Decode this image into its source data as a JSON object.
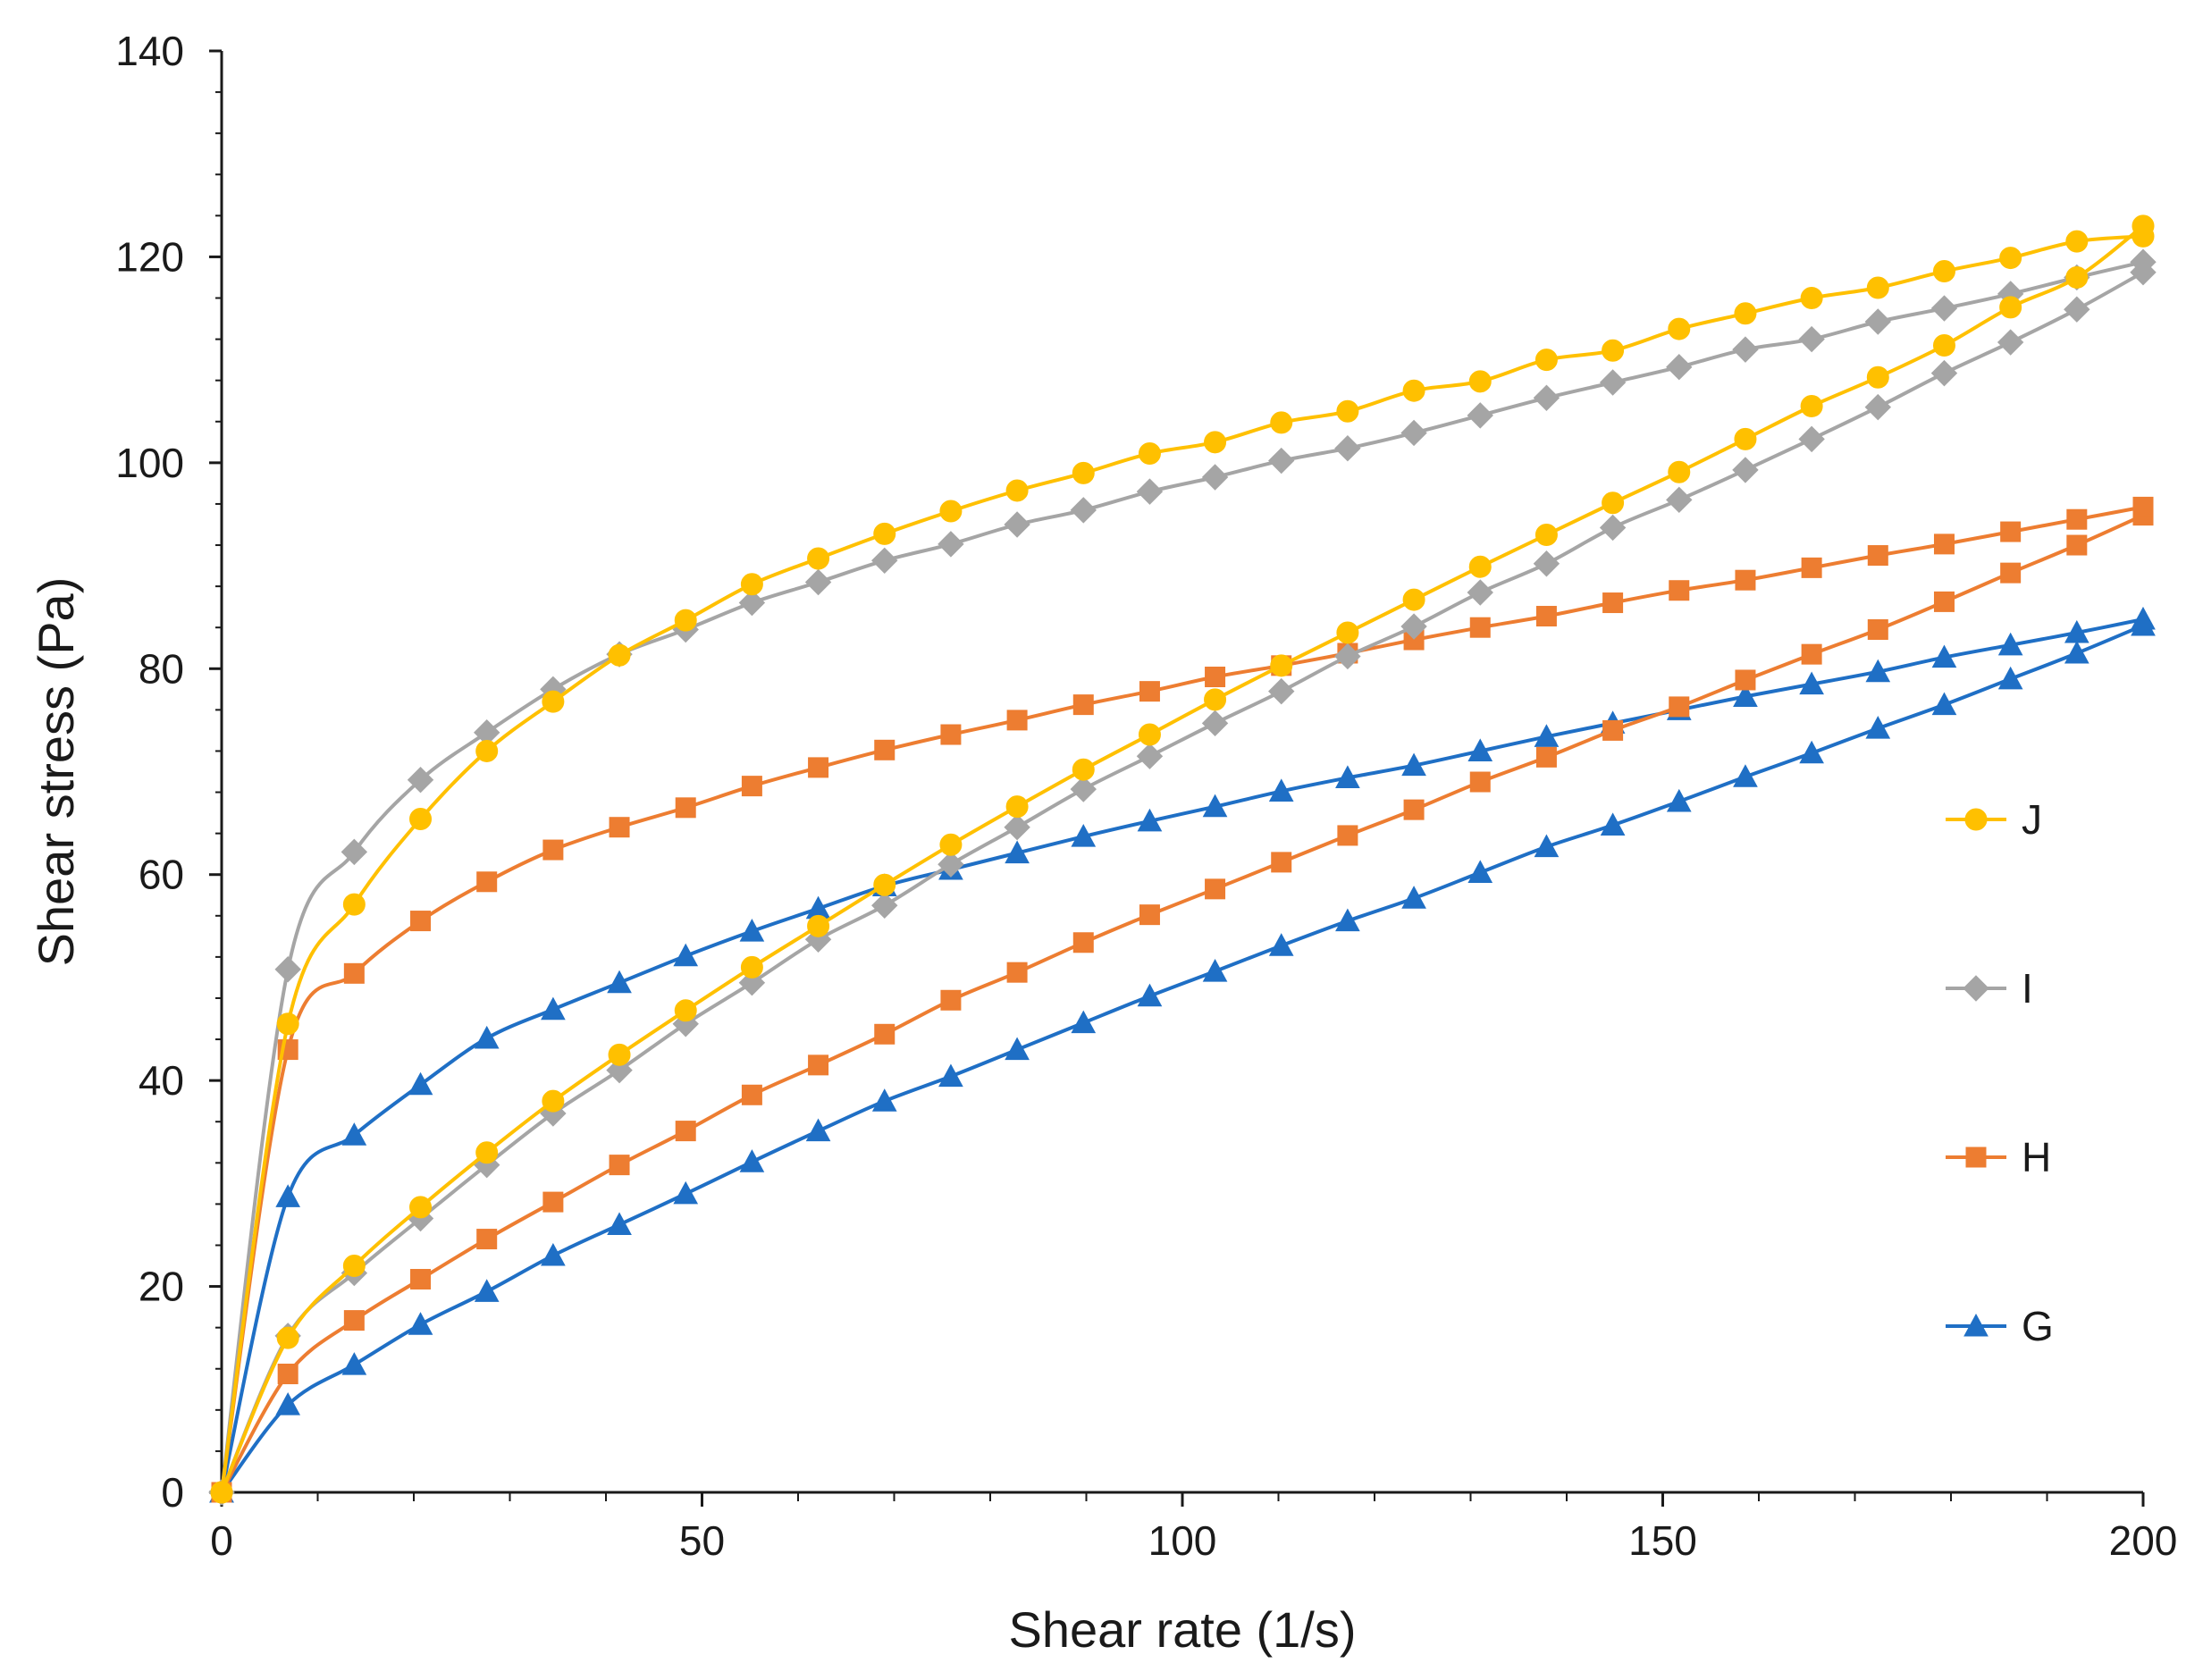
{
  "chart_data": {
    "type": "line",
    "title": "",
    "xlabel": "Shear rate (1/s)",
    "ylabel": "Shear stress (Pa)",
    "xlim": [
      0,
      200
    ],
    "ylim": [
      0,
      140
    ],
    "xticks": [
      0,
      50,
      100,
      150,
      200
    ],
    "yticks": [
      0,
      20,
      40,
      60,
      80,
      100,
      120,
      140
    ],
    "grid": false,
    "legend_position": "right",
    "series": [
      {
        "name": "J",
        "color": "#FFC000",
        "marker": "circle",
        "up": {
          "x": [
            0,
            6.9,
            13.8,
            20.7,
            27.6,
            34.5,
            41.4,
            48.3,
            55.2,
            62.1,
            69,
            75.9,
            82.8,
            89.7,
            96.6,
            103.4,
            110.3,
            117.2,
            124.1,
            131,
            137.9,
            144.8,
            151.7,
            158.6,
            165.5,
            172.4,
            179.3,
            186.2,
            193.1,
            200
          ],
          "y": [
            0,
            15,
            22,
            27.7,
            33,
            38,
            42.5,
            46.8,
            51,
            55,
            59,
            62.9,
            66.6,
            70.2,
            73.6,
            77,
            80.3,
            83.5,
            86.7,
            89.9,
            93,
            96.1,
            99.1,
            102.3,
            105.5,
            108.3,
            111.4,
            115.1,
            118,
            123
          ]
        },
        "down": {
          "x": [
            200,
            193.1,
            186.2,
            179.3,
            172.4,
            165.5,
            158.6,
            151.7,
            144.8,
            137.9,
            131,
            124.1,
            117.2,
            110.3,
            103.4,
            96.6,
            89.7,
            82.8,
            75.9,
            69,
            62.1,
            55.2,
            48.3,
            41.4,
            34.5,
            27.6,
            20.7,
            13.8,
            6.9,
            0
          ],
          "y": [
            122,
            121.5,
            119.9,
            118.6,
            117,
            116,
            114.5,
            113,
            110.9,
            110,
            107.9,
            107,
            105,
            103.9,
            102,
            100.9,
            99,
            97.3,
            95.3,
            93.1,
            90.7,
            88.2,
            84.7,
            81.3,
            76.8,
            72,
            65.4,
            57.1,
            45.5,
            0
          ]
        }
      },
      {
        "name": "I",
        "color": "#A5A5A5",
        "marker": "diamond",
        "up": {
          "x": [
            0,
            6.9,
            13.8,
            20.7,
            27.6,
            34.5,
            41.4,
            48.3,
            55.2,
            62.1,
            69,
            75.9,
            82.8,
            89.7,
            96.6,
            103.4,
            110.3,
            117.2,
            124.1,
            131,
            137.9,
            144.8,
            151.7,
            158.6,
            165.5,
            172.4,
            179.3,
            186.2,
            193.1,
            200
          ],
          "y": [
            0,
            15.2,
            21.3,
            26.6,
            31.8,
            36.8,
            41,
            45.5,
            49.5,
            53.7,
            57,
            61,
            64.6,
            68.3,
            71.5,
            74.7,
            77.8,
            81.2,
            84.1,
            87.4,
            90.2,
            93.7,
            96.4,
            99.3,
            102.3,
            105.4,
            108.7,
            111.7,
            114.9,
            118.5
          ]
        },
        "down": {
          "x": [
            200,
            193.1,
            186.2,
            179.3,
            172.4,
            165.5,
            158.6,
            151.7,
            144.8,
            137.9,
            131,
            124.1,
            117.2,
            110.3,
            103.4,
            96.6,
            89.7,
            82.8,
            75.9,
            69,
            62.1,
            55.2,
            48.3,
            41.4,
            34.5,
            27.6,
            20.7,
            13.8,
            6.9,
            0
          ],
          "y": [
            119.5,
            118,
            116.4,
            115,
            113.7,
            112,
            111,
            109.3,
            107.8,
            106.3,
            104.6,
            102.9,
            101.4,
            100.2,
            98.6,
            97.2,
            95.4,
            94,
            92.1,
            90.5,
            88.4,
            86.4,
            83.8,
            81.4,
            78,
            73.8,
            69.2,
            62.2,
            50.8,
            0
          ]
        }
      },
      {
        "name": "H",
        "color": "#ED7D31",
        "marker": "square",
        "up": {
          "x": [
            0,
            6.9,
            13.8,
            20.7,
            27.6,
            34.5,
            41.4,
            48.3,
            55.2,
            62.1,
            69,
            75.9,
            82.8,
            89.7,
            96.6,
            103.4,
            110.3,
            117.2,
            124.1,
            131,
            137.9,
            144.8,
            151.7,
            158.6,
            165.5,
            172.4,
            179.3,
            186.2,
            193.1,
            200
          ],
          "y": [
            0,
            11.5,
            16.7,
            20.7,
            24.6,
            28.2,
            31.8,
            35.1,
            38.6,
            41.5,
            44.5,
            47.8,
            50.5,
            53.4,
            56.1,
            58.6,
            61.2,
            63.8,
            66.3,
            69,
            71.4,
            74,
            76.3,
            78.9,
            81.4,
            83.8,
            86.5,
            89.3,
            92,
            94.9
          ]
        },
        "down": {
          "x": [
            200,
            193.1,
            186.2,
            179.3,
            172.4,
            165.5,
            158.6,
            151.7,
            144.8,
            137.9,
            131,
            124.1,
            117.2,
            110.3,
            103.4,
            96.6,
            89.7,
            82.8,
            75.9,
            69,
            62.1,
            55.2,
            48.3,
            41.4,
            34.5,
            27.6,
            20.7,
            13.8,
            6.9,
            0
          ],
          "y": [
            95.7,
            94.5,
            93.3,
            92.1,
            91,
            89.8,
            88.6,
            87.6,
            86.4,
            85.1,
            84,
            82.8,
            81.5,
            80.3,
            79.2,
            77.8,
            76.5,
            75,
            73.6,
            72.1,
            70.4,
            68.6,
            66.5,
            64.6,
            62.4,
            59.3,
            55.5,
            50.4,
            43,
            0
          ]
        }
      },
      {
        "name": "G",
        "color": "#1F6FC5",
        "marker": "triangle",
        "up": {
          "x": [
            0,
            6.9,
            13.8,
            20.7,
            27.6,
            34.5,
            41.4,
            48.3,
            55.2,
            62.1,
            69,
            75.9,
            82.8,
            89.7,
            96.6,
            103.4,
            110.3,
            117.2,
            124.1,
            131,
            137.9,
            144.8,
            151.7,
            158.6,
            165.5,
            172.4,
            179.3,
            186.2,
            193.1,
            200
          ],
          "y": [
            0,
            8.5,
            12.4,
            16.3,
            19.5,
            23,
            26,
            29,
            32.1,
            35.1,
            38,
            40.4,
            43,
            45.6,
            48.2,
            50.6,
            53.1,
            55.5,
            57.7,
            60.2,
            62.7,
            64.8,
            67.1,
            69.5,
            71.8,
            74.2,
            76.5,
            79,
            81.5,
            84.2
          ]
        },
        "down": {
          "x": [
            200,
            193.1,
            186.2,
            179.3,
            172.4,
            165.5,
            158.6,
            151.7,
            144.8,
            137.9,
            131,
            124.1,
            117.2,
            110.3,
            103.4,
            96.6,
            89.7,
            82.8,
            75.9,
            69,
            62.1,
            55.2,
            48.3,
            41.4,
            34.5,
            27.6,
            20.7,
            13.8,
            6.9,
            0
          ],
          "y": [
            84.8,
            83.5,
            82.3,
            81.1,
            79.7,
            78.5,
            77.3,
            76,
            74.7,
            73.4,
            72,
            70.6,
            69.4,
            68.1,
            66.6,
            65.2,
            63.7,
            62.1,
            60.5,
            58.9,
            56.7,
            54.5,
            52.1,
            49.5,
            46.9,
            44.1,
            39.6,
            34.7,
            28.7,
            0
          ]
        }
      }
    ]
  }
}
